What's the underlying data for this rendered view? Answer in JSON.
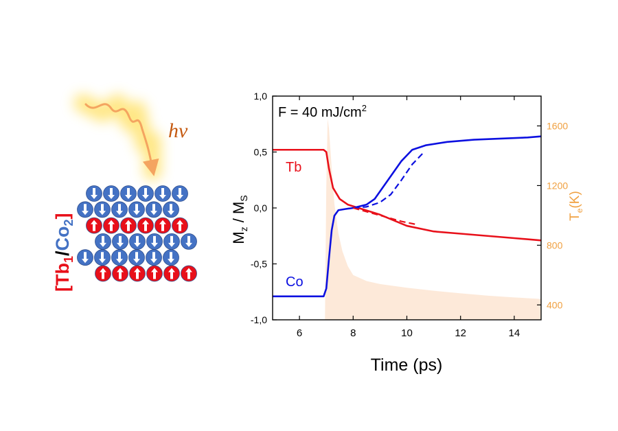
{
  "illustration": {
    "photon_label": "hν",
    "layer_label_open": "[",
    "layer_label_tb": "Tb",
    "layer_label_tb_sub": "1",
    "layer_label_slash": "/",
    "layer_label_co": "Co",
    "layer_label_co_sub": "2",
    "layer_label_close": "]",
    "rows": [
      {
        "element": "Co",
        "spin": "down",
        "count": 6
      },
      {
        "element": "Co",
        "spin": "down",
        "count": 6
      },
      {
        "element": "Tb",
        "spin": "up",
        "count": 6
      },
      {
        "element": "Co",
        "spin": "down",
        "count": 6
      },
      {
        "element": "Co",
        "spin": "down",
        "count": 6
      },
      {
        "element": "Tb",
        "spin": "up",
        "count": 6
      }
    ],
    "colors": {
      "Co": "#4472c4",
      "Tb": "#e8101a",
      "glow": "#ffe680",
      "wave": "#f4a460",
      "photon_text": "#c55a11"
    }
  },
  "chart_data": {
    "type": "line",
    "annotation": "F = 40 mJ/cm",
    "annotation_sup": "2",
    "xlabel": "Time (ps)",
    "ylabel_main": "M",
    "ylabel_sub1": "z",
    "ylabel_mid": " / M",
    "ylabel_sub2": "S",
    "y2label_main": "T",
    "y2label_sub": "e",
    "y2label_unit": "(K)",
    "xlim": [
      5,
      15
    ],
    "ylim": [
      -1.0,
      1.0
    ],
    "y2lim": [
      300,
      1800
    ],
    "x_ticks": [
      6,
      8,
      10,
      12,
      14
    ],
    "y_ticks": [
      -1.0,
      -0.5,
      0.0,
      0.5,
      1.0
    ],
    "y_tick_labels": [
      "-1,0",
      "-0,5",
      "0,0",
      "0,5",
      "1,0"
    ],
    "y2_ticks": [
      400,
      800,
      1200,
      1600
    ],
    "series": [
      {
        "name": "Tb",
        "color": "#e8101a",
        "style": "solid",
        "x": [
          5.0,
          6.9,
          7.0,
          7.1,
          7.25,
          7.5,
          7.8,
          8.2,
          9.0,
          10.0,
          11.0,
          12.0,
          13.0,
          14.0,
          15.0
        ],
        "y": [
          0.52,
          0.52,
          0.5,
          0.35,
          0.18,
          0.08,
          0.03,
          0.0,
          -0.06,
          -0.16,
          -0.21,
          -0.23,
          -0.25,
          -0.27,
          -0.29
        ]
      },
      {
        "name": "Co",
        "color": "#0c10e0",
        "style": "solid",
        "x": [
          5.0,
          6.9,
          7.0,
          7.1,
          7.2,
          7.3,
          7.45,
          7.7,
          8.0,
          8.5,
          8.8,
          9.3,
          9.8,
          10.2,
          10.7,
          11.5,
          12.5,
          13.5,
          14.5,
          15.0
        ],
        "y": [
          -0.79,
          -0.79,
          -0.72,
          -0.45,
          -0.2,
          -0.07,
          -0.02,
          -0.01,
          0.0,
          0.03,
          0.08,
          0.25,
          0.42,
          0.52,
          0.56,
          0.59,
          0.61,
          0.62,
          0.63,
          0.64
        ]
      },
      {
        "color": "#0c10e0",
        "style": "dashed",
        "x": [
          8.0,
          8.5,
          9.0,
          9.4,
          9.8,
          10.2,
          10.6
        ],
        "y": [
          0.0,
          0.01,
          0.05,
          0.12,
          0.25,
          0.39,
          0.49
        ]
      },
      {
        "color": "#e8101a",
        "style": "dashed",
        "x": [
          8.0,
          8.6,
          9.2,
          9.8,
          10.4
        ],
        "y": [
          0.0,
          -0.04,
          -0.08,
          -0.12,
          -0.15
        ]
      }
    ],
    "temperature": {
      "color": "#fde9d9",
      "x": [
        5.0,
        6.95,
        7.0,
        7.05,
        7.1,
        7.2,
        7.3,
        7.45,
        7.6,
        7.8,
        8.0,
        8.5,
        9.0,
        10.0,
        11.0,
        12.0,
        13.0,
        14.0,
        15.0
      ],
      "y": [
        300,
        300,
        1200,
        1650,
        1580,
        1320,
        1080,
        880,
        760,
        660,
        600,
        560,
        540,
        515,
        495,
        478,
        462,
        450,
        440
      ]
    },
    "series_labels": [
      {
        "text": "Tb",
        "color": "#e8101a"
      },
      {
        "text": "Co",
        "color": "#0c10e0"
      }
    ],
    "colors": {
      "axis_right": "#f0a040",
      "axis": "#000000"
    }
  }
}
